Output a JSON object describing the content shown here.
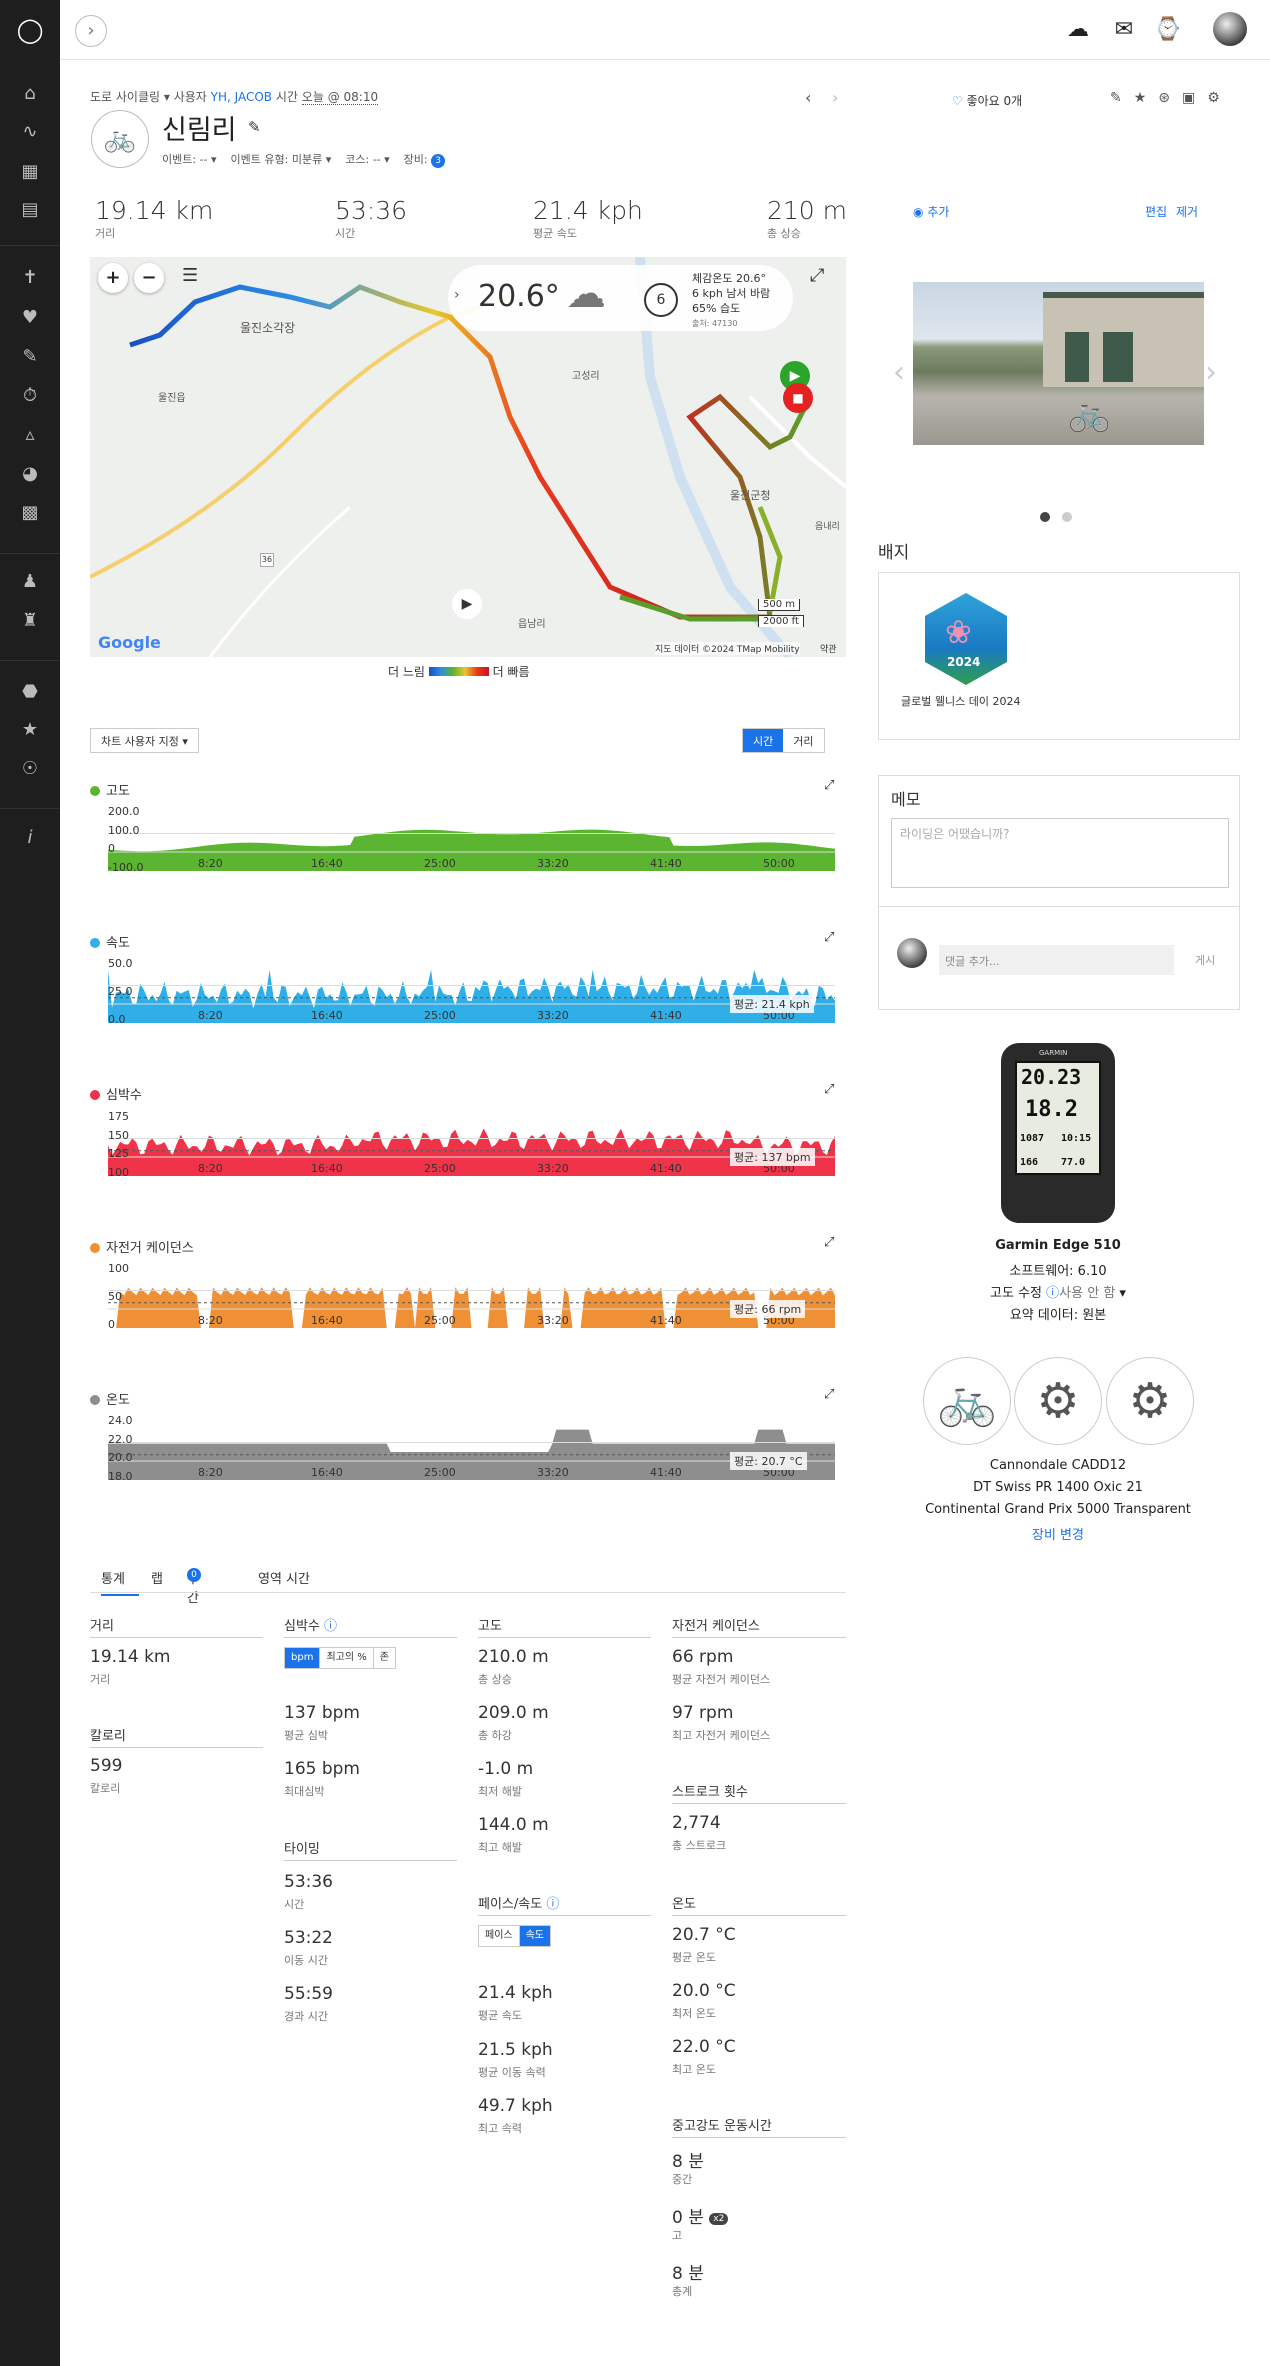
{
  "header": {
    "breadcrumb_type": "도로 사이클링",
    "breadcrumb_by": "사용자",
    "user": "YH, JACOB",
    "time_label": "시간",
    "time": "오늘 @ 08:10",
    "title": "신림리",
    "event": "이벤트: --",
    "event_type": "이벤트 유형: 미분류",
    "course": "코스: --",
    "gear": "장비:",
    "gear_count": "3",
    "like": "좋아요 0개"
  },
  "stats": [
    {
      "value": "19.14 km",
      "label": "거리"
    },
    {
      "value": "53:36",
      "label": "시간"
    },
    {
      "value": "21.4 kph",
      "label": "평균 속도"
    },
    {
      "value": "210 m",
      "label": "총 상승"
    }
  ],
  "map": {
    "weather_temp": "20.6°",
    "wind_num": "6",
    "weather_line1": "체감온도 20.6°",
    "weather_line2": "6 kph 남서 바람",
    "weather_line3": "65% 습도",
    "weather_source": "출처: 47130",
    "place1": "울진소각장",
    "place2": "울진읍",
    "place3": "고성리",
    "place4": "울진군청",
    "place5": "읍남리",
    "place6": "읍내리",
    "scale1": "500 m",
    "scale2": "2000 ft",
    "google": "Google",
    "attribution": "지도 데이터 ©2024 TMap Mobility",
    "terms": "약관",
    "road_num": "36",
    "legend_slow": "더 느림",
    "legend_fast": "더 빠름"
  },
  "chart_controls": {
    "customize": "차트 사용자 지정",
    "time": "시간",
    "distance": "거리"
  },
  "charts": [
    {
      "title": "고도",
      "color": "#5cb531",
      "yticks": [
        "200.0",
        "100.0",
        "0",
        "-100.0"
      ],
      "xticks": [
        "8:20",
        "16:40",
        "25:00",
        "33:20",
        "41:40",
        "50:00"
      ]
    },
    {
      "title": "속도",
      "color": "#30aee8",
      "yticks": [
        "50.0",
        "25.0",
        "0.0"
      ],
      "avg": "평균: 21.4 kph",
      "xticks": [
        "8:20",
        "16:40",
        "25:00",
        "33:20",
        "41:40",
        "50:00"
      ]
    },
    {
      "title": "심박수",
      "color": "#f1334a",
      "yticks": [
        "175",
        "150",
        "125",
        "100"
      ],
      "avg": "평균: 137 bpm",
      "xticks": [
        "8:20",
        "16:40",
        "25:00",
        "33:20",
        "41:40",
        "50:00"
      ]
    },
    {
      "title": "자전거 케이던스",
      "color": "#f09035",
      "yticks": [
        "100",
        "50",
        "0"
      ],
      "avg": "평균: 66 rpm",
      "xticks": [
        "8:20",
        "16:40",
        "25:00",
        "33:20",
        "41:40",
        "50:00"
      ]
    },
    {
      "title": "온도",
      "color": "#8e8e8e",
      "yticks": [
        "24.0",
        "22.0",
        "20.0",
        "18.0"
      ],
      "avg": "평균: 20.7 °C",
      "xticks": [
        "8:20",
        "16:40",
        "25:00",
        "33:20",
        "41:40",
        "50:00"
      ]
    }
  ],
  "tabs": [
    "통계",
    "랩",
    "구간",
    "영역 시간"
  ],
  "segments_count": "0",
  "stats_detail": {
    "distance": {
      "title": "거리",
      "v": "19.14 km",
      "l": "거리"
    },
    "calories": {
      "title": "칼로리",
      "v": "599",
      "l": "칼로리"
    },
    "hr": {
      "title": "심박수",
      "seg": [
        "bpm",
        "최고의 %",
        "존"
      ],
      "items": [
        {
          "v": "137 bpm",
          "l": "평균 심박"
        },
        {
          "v": "165 bpm",
          "l": "최대심박"
        }
      ]
    },
    "timing": {
      "title": "타이밍",
      "items": [
        {
          "v": "53:36",
          "l": "시간"
        },
        {
          "v": "53:22",
          "l": "이동 시간"
        },
        {
          "v": "55:59",
          "l": "경과 시간"
        }
      ]
    },
    "elev": {
      "title": "고도",
      "items": [
        {
          "v": "210.0 m",
          "l": "총 상승"
        },
        {
          "v": "209.0 m",
          "l": "총 하강"
        },
        {
          "v": "-1.0 m",
          "l": "최저 해발"
        },
        {
          "v": "144.0 m",
          "l": "최고 해발"
        }
      ]
    },
    "pace": {
      "title": "페이스/속도",
      "seg": [
        "페이스",
        "속도"
      ],
      "items": [
        {
          "v": "21.4 kph",
          "l": "평균 속도"
        },
        {
          "v": "21.5 kph",
          "l": "평균 이동 속력"
        },
        {
          "v": "49.7 kph",
          "l": "최고 속력"
        }
      ]
    },
    "cadence": {
      "title": "자전거 케이던스",
      "items": [
        {
          "v": "66 rpm",
          "l": "평균 자전거 케이던스"
        },
        {
          "v": "97 rpm",
          "l": "최고 자전거 케이던스"
        }
      ]
    },
    "strokes": {
      "title": "스트로크 횟수",
      "items": [
        {
          "v": "2,774",
          "l": "총 스트로크"
        }
      ]
    },
    "temp": {
      "title": "온도",
      "items": [
        {
          "v": "20.7 °C",
          "l": "평균 온도"
        },
        {
          "v": "20.0 °C",
          "l": "최저 온도"
        },
        {
          "v": "22.0 °C",
          "l": "최고 온도"
        }
      ]
    },
    "intensity": {
      "title": "중고강도 운동시간",
      "items": [
        {
          "v": "8 분",
          "l": "중간"
        },
        {
          "v": "0 분",
          "l": "고",
          "badge": "x2"
        },
        {
          "v": "8 분",
          "l": "총계"
        }
      ]
    }
  },
  "right": {
    "add_photo": "추가",
    "edit": "편집",
    "remove": "제거",
    "badges_title": "배지",
    "badge_year": "2024",
    "badge_name": "글로벌 웰니스 데이 2024",
    "notes_title": "메모",
    "notes_placeholder": "라이딩은 어땠습니까?",
    "comment_placeholder": "댓글 추가...",
    "post": "게시",
    "device_name": "Garmin Edge 510",
    "software": "소프트웨어: 6.10",
    "elev_corr_label": "고도 수정",
    "elev_corr_val": "사용 안 함",
    "summary": "요약 데이터: 원본",
    "bike": "Cannondale CADD12",
    "wheel": "DT Swiss PR 1400 Oxic 21",
    "tire": "Continental Grand Prix 5000 Transparent",
    "change_gear": "장비 변경",
    "device_screen": {
      "brand": "GARMIN",
      "distance": "20.23",
      "speed": "18.2",
      "elev": "1087",
      "time": "10:15",
      "hr": "166",
      "temp": "77.0"
    }
  }
}
